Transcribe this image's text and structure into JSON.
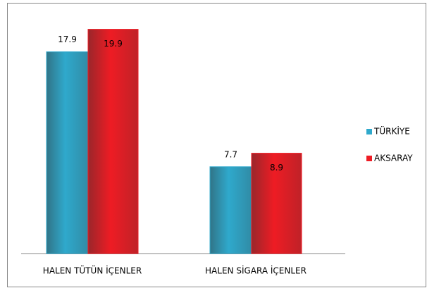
{
  "chart_data": {
    "type": "bar",
    "categories": [
      "HALEN TÜTÜN İÇENLER",
      "HALEN SİGARA İÇENLER"
    ],
    "series": [
      {
        "name": "TÜRKİYE",
        "color": "#2fa9cc",
        "values": [
          17.9,
          7.7
        ]
      },
      {
        "name": "AKSARAY",
        "color": "#ee1c24",
        "values": [
          19.9,
          8.9
        ]
      }
    ],
    "legend": "right"
  }
}
